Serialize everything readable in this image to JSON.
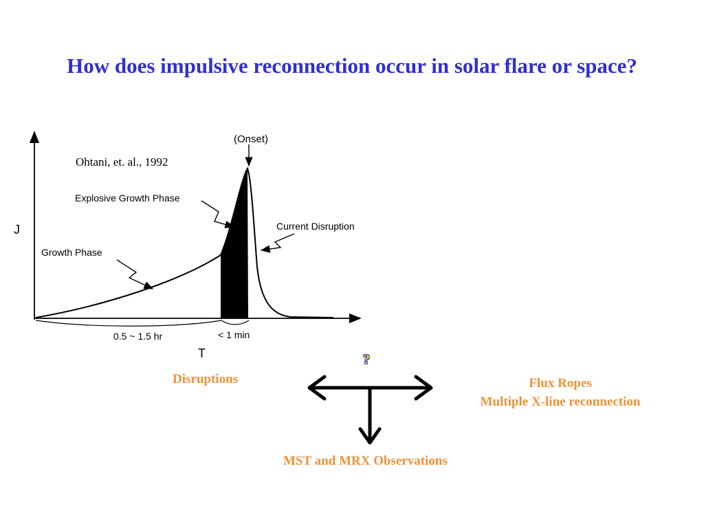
{
  "slide": {
    "title": "How does impulsive reconnection occur in solar flare or space?"
  },
  "figure": {
    "citation": "Ohtani, et. al., 1992",
    "y_axis_label": "J",
    "x_axis_label": "T",
    "annotations": {
      "onset": "(Onset)",
      "explosive": "Explosive Growth Phase",
      "disruption": "Current Disruption",
      "growth": "Growth Phase"
    },
    "time_spans": {
      "growth_duration": "0.5 ~ 1.5 hr",
      "explosive_duration": "< 1 min"
    }
  },
  "diagram": {
    "question_mark": "?",
    "left_label": "Disruptions",
    "right_label_line1": "Flux Ropes",
    "right_label_line2": "Multiple X-line reconnection",
    "bottom_label": "MST and MRX Observations"
  },
  "colors": {
    "title": "#2f2fd6",
    "labels": "#f0923a",
    "question_mark": "#ffd200"
  }
}
